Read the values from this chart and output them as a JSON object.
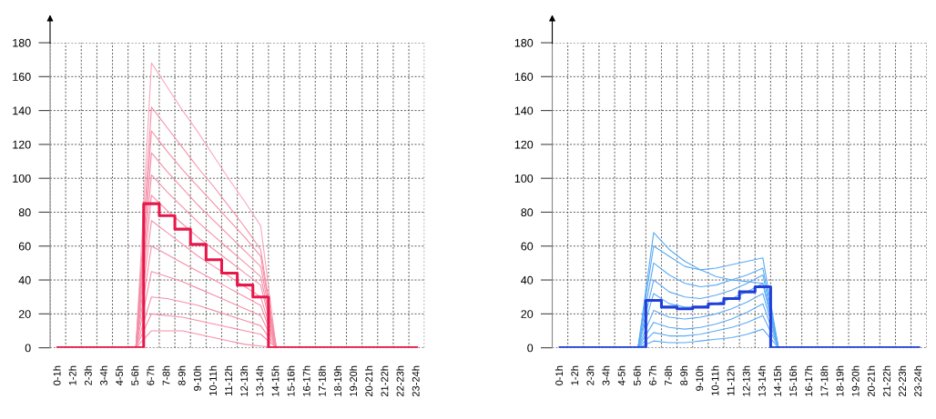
{
  "chart_data": [
    {
      "type": "line",
      "categories": [
        "0-1h",
        "1-2h",
        "2-3h",
        "3-4h",
        "4-5h",
        "5-6h",
        "6-7h",
        "7-8h",
        "8-9h",
        "9-10h",
        "10-11h",
        "11-12h",
        "12-13h",
        "13-14h",
        "14-15h",
        "15-16h",
        "16-17h",
        "17-18h",
        "18-19h",
        "19-20h",
        "20-21h",
        "21-22h",
        "22-23h",
        "23-24h"
      ],
      "ylim": [
        0,
        180
      ],
      "yticks": [
        0,
        20,
        40,
        60,
        80,
        100,
        120,
        140,
        160,
        180
      ],
      "grid": true,
      "marker": "none",
      "line_style": "solid",
      "series": [
        {
          "color": "#f7a8bb",
          "values": [
            null,
            null,
            null,
            null,
            null,
            0,
            168,
            154,
            140,
            127,
            113,
            99,
            86,
            72,
            0,
            null,
            null,
            null,
            null,
            null,
            null,
            null,
            null,
            null
          ]
        },
        {
          "color": "#f58fa8",
          "values": [
            null,
            null,
            null,
            null,
            null,
            0,
            142,
            130,
            118,
            106,
            95,
            83,
            71,
            58,
            0,
            null,
            null,
            null,
            null,
            null,
            null,
            null,
            null,
            null
          ]
        },
        {
          "color": "#f58fa8",
          "values": [
            null,
            null,
            null,
            null,
            null,
            0,
            128,
            116,
            105,
            95,
            85,
            75,
            65,
            54,
            0,
            null,
            null,
            null,
            null,
            null,
            null,
            null,
            null,
            null
          ]
        },
        {
          "color": "#f58fa8",
          "values": [
            null,
            null,
            null,
            null,
            null,
            0,
            115,
            104,
            94,
            84,
            75,
            66,
            57,
            48,
            0,
            null,
            null,
            null,
            null,
            null,
            null,
            null,
            null,
            null
          ]
        },
        {
          "color": "#f58fa8",
          "values": [
            null,
            null,
            null,
            null,
            null,
            0,
            102,
            92,
            83,
            74,
            66,
            58,
            50,
            42,
            0,
            null,
            null,
            null,
            null,
            null,
            null,
            null,
            null,
            null
          ]
        },
        {
          "color": "#f58fa8",
          "values": [
            null,
            null,
            null,
            null,
            null,
            0,
            90,
            81,
            73,
            65,
            58,
            51,
            44,
            37,
            0,
            null,
            null,
            null,
            null,
            null,
            null,
            null,
            null,
            null
          ]
        },
        {
          "color": "#f58fa8",
          "values": [
            null,
            null,
            null,
            null,
            null,
            0,
            75,
            68,
            61,
            54,
            48,
            42,
            36,
            30,
            0,
            null,
            null,
            null,
            null,
            null,
            null,
            null,
            null,
            null
          ]
        },
        {
          "color": "#f58fa8",
          "values": [
            null,
            null,
            null,
            null,
            null,
            0,
            60,
            55,
            50,
            45,
            40,
            35,
            30,
            25,
            0,
            null,
            null,
            null,
            null,
            null,
            null,
            null,
            null,
            null
          ]
        },
        {
          "color": "#f58fa8",
          "values": [
            null,
            null,
            null,
            null,
            null,
            0,
            45,
            42,
            39,
            35,
            31,
            27,
            23,
            19,
            0,
            null,
            null,
            null,
            null,
            null,
            null,
            null,
            null,
            null
          ]
        },
        {
          "color": "#f58fa8",
          "values": [
            null,
            null,
            null,
            null,
            null,
            0,
            30,
            29,
            27,
            25,
            22,
            19,
            16,
            13,
            0,
            null,
            null,
            null,
            null,
            null,
            null,
            null,
            null,
            null
          ]
        },
        {
          "color": "#f58fa8",
          "values": [
            null,
            null,
            null,
            null,
            null,
            0,
            20,
            19,
            18,
            16,
            14,
            12,
            10,
            8,
            0,
            null,
            null,
            null,
            null,
            null,
            null,
            null,
            null,
            null
          ]
        },
        {
          "color": "#f58fa8",
          "values": [
            null,
            null,
            null,
            null,
            null,
            0,
            10,
            10,
            10,
            8,
            6,
            4,
            2,
            1,
            0,
            null,
            null,
            null,
            null,
            null,
            null,
            null,
            null,
            null
          ]
        },
        {
          "type": "step",
          "color": "#e8174a",
          "values": [
            0,
            0,
            0,
            0,
            0,
            0,
            85,
            78,
            70,
            61,
            52,
            44,
            37,
            30,
            0,
            0,
            0,
            0,
            0,
            0,
            0,
            0,
            0,
            0
          ]
        }
      ]
    },
    {
      "type": "line",
      "categories": [
        "0-1h",
        "1-2h",
        "2-3h",
        "3-4h",
        "4-5h",
        "5-6h",
        "6-7h",
        "7-8h",
        "8-9h",
        "9-10h",
        "10-11h",
        "11-12h",
        "12-13h",
        "13-14h",
        "14-15h",
        "15-16h",
        "16-17h",
        "17-18h",
        "18-19h",
        "19-20h",
        "20-21h",
        "21-22h",
        "22-23h",
        "23-24h"
      ],
      "ylim": [
        0,
        180
      ],
      "yticks": [
        0,
        20,
        40,
        60,
        80,
        100,
        120,
        140,
        160,
        180
      ],
      "grid": true,
      "marker": "none",
      "line_style": "solid",
      "series": [
        {
          "color": "#5aaaf5",
          "values": [
            null,
            null,
            null,
            null,
            null,
            0,
            68,
            58,
            51,
            46,
            42,
            40,
            39,
            38,
            0,
            null,
            null,
            null,
            null,
            null,
            null,
            null,
            null,
            null
          ]
        },
        {
          "color": "#5aaaf5",
          "values": [
            null,
            null,
            null,
            null,
            null,
            0,
            60,
            54,
            48,
            46,
            47,
            49,
            51,
            53,
            0,
            null,
            null,
            null,
            null,
            null,
            null,
            null,
            null,
            null
          ]
        },
        {
          "color": "#5aaaf5",
          "values": [
            null,
            null,
            null,
            null,
            null,
            0,
            50,
            43,
            38,
            36,
            37,
            40,
            43,
            47,
            0,
            null,
            null,
            null,
            null,
            null,
            null,
            null,
            null,
            null
          ]
        },
        {
          "color": "#5aaaf5",
          "values": [
            null,
            null,
            null,
            null,
            null,
            0,
            40,
            33,
            30,
            29,
            31,
            34,
            38,
            43,
            0,
            null,
            null,
            null,
            null,
            null,
            null,
            null,
            null,
            null
          ]
        },
        {
          "color": "#5aaaf5",
          "values": [
            null,
            null,
            null,
            null,
            null,
            0,
            32,
            26,
            24,
            24,
            26,
            29,
            33,
            38,
            0,
            null,
            null,
            null,
            null,
            null,
            null,
            null,
            null,
            null
          ]
        },
        {
          "color": "#5aaaf5",
          "values": [
            null,
            null,
            null,
            null,
            null,
            0,
            22,
            18,
            17,
            18,
            20,
            23,
            27,
            32,
            0,
            null,
            null,
            null,
            null,
            null,
            null,
            null,
            null,
            null
          ]
        },
        {
          "color": "#5aaaf5",
          "values": [
            null,
            null,
            null,
            null,
            null,
            0,
            15,
            12,
            11,
            12,
            14,
            17,
            21,
            26,
            0,
            null,
            null,
            null,
            null,
            null,
            null,
            null,
            null,
            null
          ]
        },
        {
          "color": "#5aaaf5",
          "values": [
            null,
            null,
            null,
            null,
            null,
            0,
            9,
            7,
            7,
            8,
            10,
            12,
            15,
            19,
            0,
            null,
            null,
            null,
            null,
            null,
            null,
            null,
            null,
            null
          ]
        },
        {
          "color": "#5aaaf5",
          "values": [
            null,
            null,
            null,
            null,
            null,
            0,
            4,
            3,
            3,
            4,
            5,
            6,
            8,
            11,
            0,
            null,
            null,
            null,
            null,
            null,
            null,
            null,
            null,
            null
          ]
        },
        {
          "type": "step",
          "color": "#1f3fd8",
          "values": [
            0,
            0,
            0,
            0,
            0,
            0,
            28,
            24,
            23,
            24,
            26,
            29,
            33,
            36,
            0,
            0,
            0,
            0,
            0,
            0,
            0,
            0,
            0,
            0
          ]
        }
      ]
    }
  ]
}
